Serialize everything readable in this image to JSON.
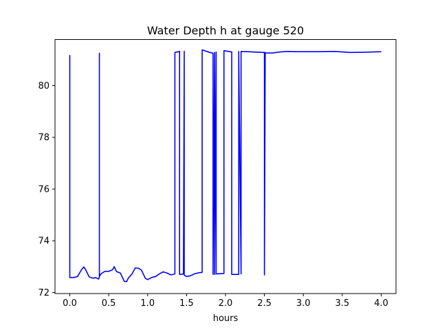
{
  "chart_data": {
    "type": "line",
    "title": "Water Depth h at gauge 520",
    "xlabel": "hours",
    "ylabel": "",
    "xlim": [
      -0.19,
      4.19
    ],
    "ylim": [
      71.96,
      81.78
    ],
    "grid": false,
    "colors": {
      "line": "#0000ff",
      "axis": "#000000",
      "background": "#ffffff"
    },
    "xticks": [
      0.0,
      0.5,
      1.0,
      1.5,
      2.0,
      2.5,
      3.0,
      3.5,
      4.0
    ],
    "xtick_labels": [
      "0.0",
      "0.5",
      "1.0",
      "1.5",
      "2.0",
      "2.5",
      "3.0",
      "3.5",
      "4.0"
    ],
    "yticks": [
      72,
      74,
      76,
      78,
      80
    ],
    "ytick_labels": [
      "72",
      "74",
      "76",
      "78",
      "80"
    ],
    "series": [
      {
        "name": "",
        "x": [
          0.0,
          0.0,
          0.05,
          0.1,
          0.15,
          0.18,
          0.2,
          0.25,
          0.3,
          0.33,
          0.37,
          0.38,
          0.38,
          0.38,
          0.4,
          0.45,
          0.5,
          0.55,
          0.57,
          0.6,
          0.65,
          0.7,
          0.73,
          0.75,
          0.8,
          0.84,
          0.88,
          0.92,
          0.97,
          1.0,
          1.05,
          1.1,
          1.15,
          1.2,
          1.25,
          1.3,
          1.35,
          1.35,
          1.41,
          1.41,
          1.46,
          1.47,
          1.47,
          1.5,
          1.55,
          1.6,
          1.65,
          1.7,
          1.7,
          1.8,
          1.84,
          1.84,
          1.86,
          1.86,
          1.88,
          1.88,
          1.98,
          1.98,
          2.08,
          2.08,
          2.17,
          2.17,
          2.2,
          2.2,
          2.5,
          2.5,
          2.51,
          2.51,
          2.6,
          2.7,
          2.8,
          2.9,
          3.0,
          3.2,
          3.4,
          3.6,
          3.8,
          4.0
        ],
        "y": [
          81.18,
          72.58,
          72.58,
          72.62,
          72.88,
          72.99,
          72.9,
          72.6,
          72.55,
          72.58,
          72.52,
          72.6,
          81.25,
          72.62,
          72.72,
          72.82,
          72.82,
          72.88,
          73.0,
          72.81,
          72.75,
          72.43,
          72.42,
          72.55,
          72.72,
          72.95,
          72.94,
          72.87,
          72.55,
          72.5,
          72.58,
          72.62,
          72.72,
          72.8,
          72.75,
          72.68,
          72.72,
          81.28,
          81.32,
          72.7,
          72.72,
          81.33,
          72.67,
          72.62,
          72.65,
          72.72,
          72.76,
          72.78,
          81.38,
          81.28,
          81.25,
          72.7,
          81.28,
          72.7,
          81.3,
          72.72,
          72.74,
          81.35,
          81.3,
          72.7,
          72.7,
          81.32,
          72.72,
          81.32,
          81.28,
          72.68,
          81.28,
          81.26,
          81.26,
          81.3,
          81.32,
          81.31,
          81.31,
          81.31,
          81.32,
          81.28,
          81.29,
          81.31
        ]
      }
    ]
  }
}
